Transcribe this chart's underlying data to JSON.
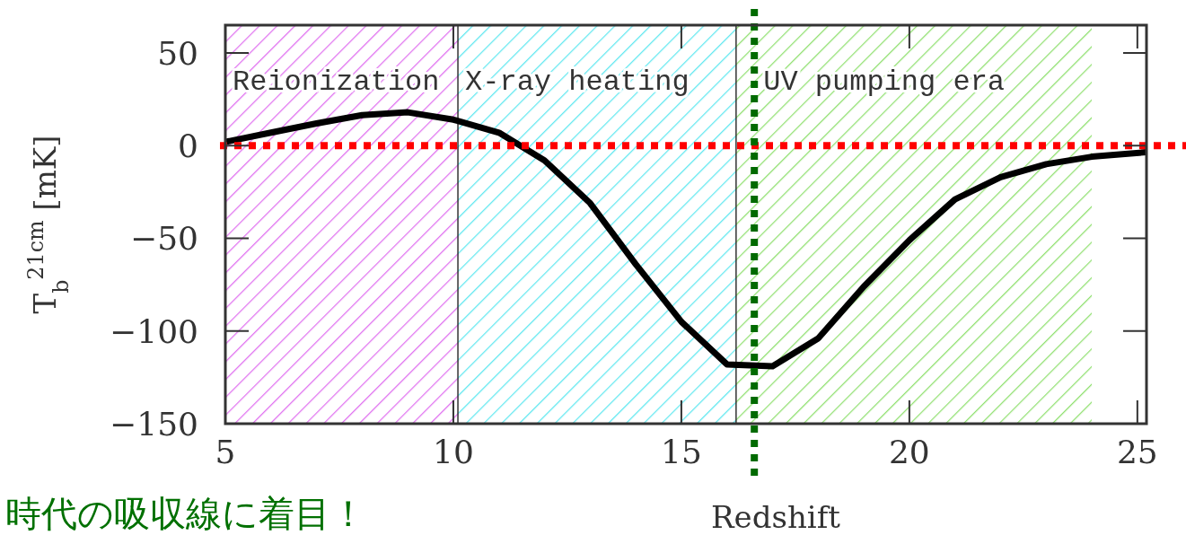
{
  "chart_data": {
    "type": "line",
    "xlabel": "Redshift",
    "ylabel": "T$_{b}$$^{21cm}$ [mK]",
    "x": [
      5,
      6,
      7,
      8,
      9,
      10,
      11,
      12,
      13,
      14,
      15,
      16,
      17,
      18,
      19,
      20,
      21,
      22,
      23,
      24,
      25.2
    ],
    "series": [
      {
        "color": "#000000",
        "values": [
          2,
          7,
          12,
          16.5,
          18,
          14,
          7,
          -8,
          -31,
          -64,
          -95,
          -118,
          -119,
          -104,
          -76,
          -51,
          -29,
          -17,
          -10,
          -6,
          -3.5
        ]
      }
    ],
    "xlim": [
      5,
      25.2
    ],
    "ylim": [
      -150,
      65
    ],
    "xticks": [
      5,
      10,
      15,
      20,
      25
    ],
    "yticks": [
      50,
      0,
      -50,
      -100,
      -150
    ],
    "marker": "none",
    "line_style": "solid",
    "bands": [
      {
        "axis": "x",
        "from": 5,
        "to": 10.1,
        "label": "Reionization",
        "color": "#e070f0"
      },
      {
        "axis": "x",
        "from": 10.1,
        "to": 16.2,
        "label": "X-ray heating",
        "color": "#60e8f0"
      },
      {
        "axis": "x",
        "from": 16.2,
        "to": 24,
        "label": "UV pumping era",
        "color": "#90e070"
      }
    ],
    "ref_lines": [
      {
        "axis": "x",
        "value": 10.1,
        "color": "#333333",
        "line_style": "solid"
      },
      {
        "axis": "x",
        "value": 16.2,
        "color": "#333333",
        "line_style": "solid"
      },
      {
        "axis": "y",
        "value": 0,
        "color": "#ff0000",
        "line_style": "dotted"
      },
      {
        "axis": "x",
        "value": 16.6,
        "color": "#006a00",
        "line_style": "dotted"
      }
    ],
    "annotations": [
      "時代の吸収線に着目！"
    ]
  }
}
